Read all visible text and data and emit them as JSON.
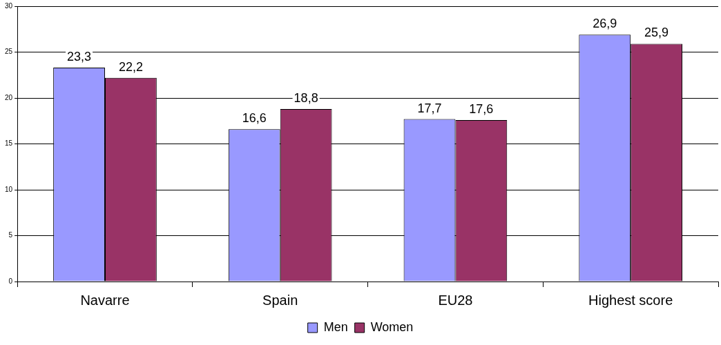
{
  "chart_data": {
    "type": "bar",
    "categories": [
      "Navarre",
      "Spain",
      "EU28",
      "Highest score"
    ],
    "series": [
      {
        "name": "Men",
        "color": "#9999ff",
        "values": [
          23.3,
          16.6,
          17.7,
          26.9
        ],
        "value_labels": [
          "23,3",
          "16,6",
          "17,7",
          "26,9"
        ]
      },
      {
        "name": "Women",
        "color": "#993366",
        "values": [
          22.2,
          18.8,
          17.6,
          25.9
        ],
        "value_labels": [
          "22,2",
          "18,8",
          "17,6",
          "25,9"
        ]
      }
    ],
    "ylim": [
      0,
      30
    ],
    "yticks": [
      0,
      5,
      10,
      15,
      20,
      25,
      30
    ],
    "grid": "y",
    "legend": "bottom"
  }
}
